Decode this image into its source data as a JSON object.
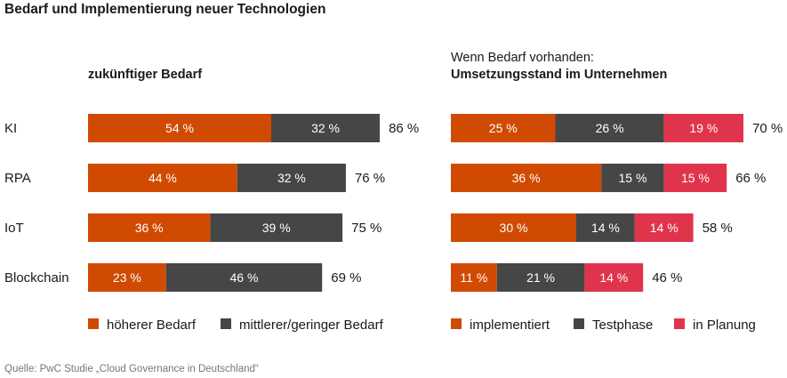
{
  "title": "Bedarf und Implementierung neuer Technologien",
  "left_subtitle": "zukünftiger Bedarf",
  "right_subtitle_line1": "Wenn Bedarf vorhanden:",
  "right_subtitle_line2": "Umsetzungsstand im Unternehmen",
  "source": "Quelle: PwC Studie „Cloud Governance in Deutschland“",
  "colors": {
    "orange": "#d04a02",
    "gray": "#464646",
    "pink": "#e0344c"
  },
  "chart_data": [
    {
      "type": "bar",
      "stacked": true,
      "orientation": "horizontal",
      "title": "zukünftiger Bedarf",
      "categories": [
        "KI",
        "RPA",
        "IoT",
        "Blockchain"
      ],
      "series": [
        {
          "name": "höherer Bedarf",
          "values": [
            54,
            44,
            36,
            23
          ],
          "labels": [
            "54 %",
            "44 %",
            "36 %",
            "23 %"
          ],
          "color": "#d04a02"
        },
        {
          "name": "mittlerer/geringer Bedarf",
          "values": [
            32,
            32,
            39,
            46
          ],
          "labels": [
            "32 %",
            "32 %",
            "39 %",
            "46 %"
          ],
          "color": "#464646"
        }
      ],
      "totals": [
        86,
        76,
        75,
        69
      ],
      "total_labels": [
        "86 %",
        "76 %",
        "75 %",
        "69 %"
      ]
    },
    {
      "type": "bar",
      "stacked": true,
      "orientation": "horizontal",
      "title": "Wenn Bedarf vorhanden: Umsetzungsstand im Unternehmen",
      "categories": [
        "KI",
        "RPA",
        "IoT",
        "Blockchain"
      ],
      "series": [
        {
          "name": "implementiert",
          "values": [
            25,
            36,
            30,
            11
          ],
          "labels": [
            "25 %",
            "36 %",
            "30 %",
            "11 %"
          ],
          "color": "#d04a02"
        },
        {
          "name": "Testphase",
          "values": [
            26,
            15,
            14,
            21
          ],
          "labels": [
            "26 %",
            "15 %",
            "14 %",
            "21 %"
          ],
          "color": "#464646"
        },
        {
          "name": "in Planung",
          "values": [
            19,
            15,
            14,
            14
          ],
          "labels": [
            "19 %",
            "15 %",
            "14 %",
            "14 %"
          ],
          "color": "#e0344c"
        }
      ],
      "totals": [
        70,
        66,
        58,
        46
      ],
      "total_labels": [
        "70 %",
        "66 %",
        "58 %",
        "46 %"
      ]
    }
  ]
}
